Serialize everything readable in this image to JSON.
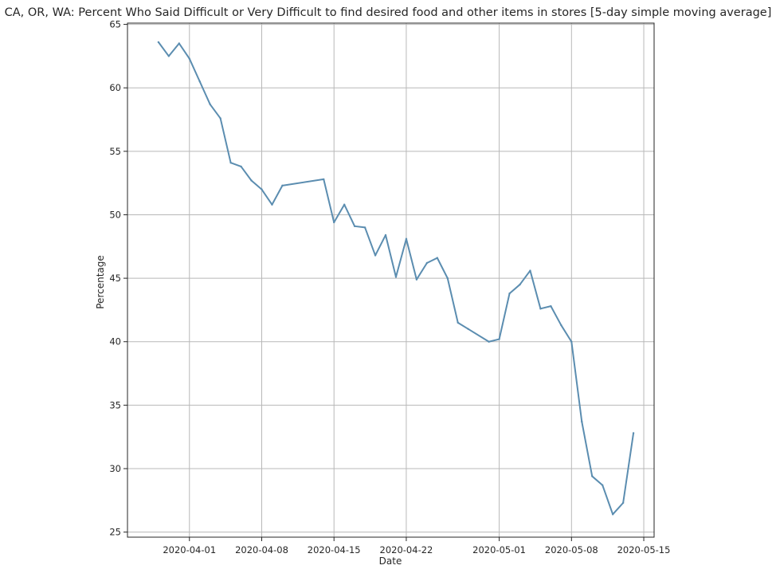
{
  "chart_data": {
    "type": "line",
    "title": "CA, OR, WA: Percent Who Said Difficult or Very Difficult to find desired food and other items in stores [5-day simple moving average]",
    "xlabel": "Date",
    "ylabel": "Percentage",
    "x_axis_type": "date",
    "xlim": [
      "2020-03-26",
      "2020-05-16"
    ],
    "ylim": [
      24.6,
      65.1
    ],
    "x_ticks": [
      "2020-04-01",
      "2020-04-08",
      "2020-04-15",
      "2020-04-22",
      "2020-05-01",
      "2020-05-08",
      "2020-05-15"
    ],
    "y_ticks": [
      25,
      30,
      35,
      40,
      45,
      50,
      55,
      60,
      65
    ],
    "grid": true,
    "legend": "none",
    "line_color": "#5b8db0",
    "series": [
      {
        "x": [
          "2020-03-29",
          "2020-03-30",
          "2020-03-31",
          "2020-04-01",
          "2020-04-02",
          "2020-04-03",
          "2020-04-04",
          "2020-04-05",
          "2020-04-06",
          "2020-04-07",
          "2020-04-08",
          "2020-04-09",
          "2020-04-10",
          "2020-04-14",
          "2020-04-15",
          "2020-04-16",
          "2020-04-17",
          "2020-04-18",
          "2020-04-19",
          "2020-04-20",
          "2020-04-21",
          "2020-04-22",
          "2020-04-23",
          "2020-04-24",
          "2020-04-25",
          "2020-04-26",
          "2020-04-27",
          "2020-04-28",
          "2020-04-30",
          "2020-05-01",
          "2020-05-02",
          "2020-05-03",
          "2020-05-04",
          "2020-05-05",
          "2020-05-06",
          "2020-05-07",
          "2020-05-08",
          "2020-05-09",
          "2020-05-10",
          "2020-05-11",
          "2020-05-12",
          "2020-05-13",
          "2020-05-14"
        ],
        "values": [
          63.6,
          62.5,
          63.5,
          62.3,
          60.5,
          58.7,
          57.6,
          54.1,
          53.8,
          52.7,
          52.0,
          50.8,
          52.3,
          52.8,
          49.4,
          50.8,
          49.1,
          49.0,
          46.8,
          48.4,
          45.1,
          48.1,
          44.9,
          46.2,
          46.6,
          45.0,
          41.5,
          41.0,
          40.0,
          40.2,
          43.8,
          44.5,
          45.6,
          42.6,
          42.8,
          41.3,
          40.0,
          33.7,
          29.4,
          28.7,
          26.4,
          27.3,
          32.8
        ]
      }
    ]
  }
}
